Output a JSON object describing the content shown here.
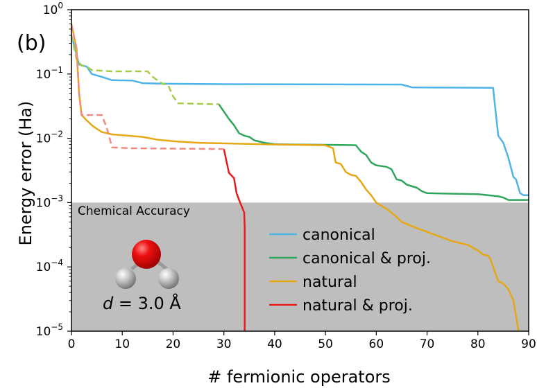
{
  "panel_label": "(b)",
  "chart_data": {
    "type": "line",
    "xlabel": "# fermionic operators",
    "ylabel": "Energy error (Ha)",
    "xlim": [
      0,
      90
    ],
    "ylim": [
      1e-05,
      1
    ],
    "yscale": "log",
    "x_ticks": [
      0,
      10,
      20,
      30,
      40,
      50,
      60,
      70,
      80,
      90
    ],
    "y_ticks": [
      {
        "value": 1,
        "base": "10",
        "exp": "0"
      },
      {
        "value": 0.1,
        "base": "10",
        "exp": "−1"
      },
      {
        "value": 0.01,
        "base": "10",
        "exp": "−2"
      },
      {
        "value": 0.001,
        "base": "10",
        "exp": "−3"
      },
      {
        "value": 0.0001,
        "base": "10",
        "exp": "−4"
      },
      {
        "value": 1e-05,
        "base": "10",
        "exp": "−5"
      }
    ],
    "shaded_region": {
      "label": "Chemical Accuracy",
      "y_from": 1e-05,
      "y_to": 0.001,
      "color": "#bebebe"
    },
    "molecule": {
      "name": "water",
      "label_var": "d",
      "label_rest": " = 3.0 Å",
      "oxygen_color": "#e00000",
      "hydrogen_color": "#b8b8b8"
    },
    "legend": {
      "position": "lower-center",
      "entries": [
        "canonical",
        "canonical & proj.",
        "natural",
        "natural & proj."
      ]
    },
    "series": [
      {
        "name": "canonical",
        "color": "#4fb3e6",
        "dash": "solid",
        "points": [
          [
            0,
            0.4
          ],
          [
            1,
            0.2
          ],
          [
            1.5,
            0.14
          ],
          [
            3,
            0.13
          ],
          [
            4,
            0.1
          ],
          [
            6,
            0.09
          ],
          [
            8,
            0.08
          ],
          [
            12,
            0.079
          ],
          [
            14,
            0.072
          ],
          [
            17,
            0.071
          ],
          [
            19,
            0.0705
          ],
          [
            30,
            0.0695
          ],
          [
            65,
            0.0685
          ],
          [
            67,
            0.062
          ],
          [
            72,
            0.0615
          ],
          [
            83,
            0.061
          ],
          [
            84,
            0.011
          ],
          [
            85,
            0.0085
          ],
          [
            86,
            0.005
          ],
          [
            87,
            0.0025
          ],
          [
            87.5,
            0.0023
          ],
          [
            88.3,
            0.0014
          ],
          [
            89,
            0.0013
          ],
          [
            90,
            0.0013
          ]
        ]
      },
      {
        "name": "canonical & proj.",
        "color": "#2ea55a",
        "dash": "solid",
        "points": [
          [
            29,
            0.034
          ],
          [
            30,
            0.026
          ],
          [
            31,
            0.02
          ],
          [
            32,
            0.016
          ],
          [
            33,
            0.012
          ],
          [
            34,
            0.011
          ],
          [
            35,
            0.0105
          ],
          [
            36,
            0.0093
          ],
          [
            38,
            0.0085
          ],
          [
            40,
            0.0081
          ],
          [
            44,
            0.008
          ],
          [
            52,
            0.0079
          ],
          [
            56,
            0.0078
          ],
          [
            57,
            0.0062
          ],
          [
            58,
            0.0055
          ],
          [
            59,
            0.0042
          ],
          [
            60,
            0.0038
          ],
          [
            61,
            0.0037
          ],
          [
            62,
            0.0036
          ],
          [
            63,
            0.0033
          ],
          [
            64,
            0.0023
          ],
          [
            65,
            0.0022
          ],
          [
            66,
            0.0019
          ],
          [
            68,
            0.0017
          ],
          [
            69,
            0.0015
          ],
          [
            70,
            0.0014
          ],
          [
            80,
            0.00135
          ],
          [
            82,
            0.0013
          ],
          [
            84,
            0.00125
          ],
          [
            85,
            0.0012
          ],
          [
            86,
            0.0011
          ],
          [
            88,
            0.0011
          ],
          [
            90,
            0.0011
          ]
        ]
      },
      {
        "name": "canonical-proj-dashed",
        "color": "#a8cc4a",
        "dash": "dashed",
        "points": [
          [
            0,
            0.4
          ],
          [
            1,
            0.17
          ],
          [
            2,
            0.135
          ],
          [
            3,
            0.13
          ],
          [
            4,
            0.115
          ],
          [
            8,
            0.11
          ],
          [
            15,
            0.11
          ],
          [
            16,
            0.09
          ],
          [
            18,
            0.07
          ],
          [
            19,
            0.068
          ],
          [
            20,
            0.045
          ],
          [
            21,
            0.035
          ],
          [
            28,
            0.034
          ],
          [
            29,
            0.034
          ]
        ]
      },
      {
        "name": "natural",
        "color": "#e6a717",
        "dash": "solid",
        "points": [
          [
            0,
            0.6
          ],
          [
            1,
            0.25
          ],
          [
            1.5,
            0.05
          ],
          [
            2,
            0.023
          ],
          [
            3,
            0.019
          ],
          [
            4,
            0.016
          ],
          [
            5,
            0.014
          ],
          [
            6,
            0.0125
          ],
          [
            8,
            0.0115
          ],
          [
            11,
            0.011
          ],
          [
            14,
            0.0105
          ],
          [
            17,
            0.0095
          ],
          [
            20,
            0.009
          ],
          [
            25,
            0.0085
          ],
          [
            40,
            0.008
          ],
          [
            50,
            0.0078
          ],
          [
            51.5,
            0.007
          ],
          [
            52,
            0.0042
          ],
          [
            53,
            0.004
          ],
          [
            54,
            0.003
          ],
          [
            55,
            0.0027
          ],
          [
            56,
            0.0026
          ],
          [
            57,
            0.0021
          ],
          [
            58,
            0.0016
          ],
          [
            59,
            0.0013
          ],
          [
            60,
            0.001
          ],
          [
            62,
            0.0008
          ],
          [
            64,
            0.0006
          ],
          [
            65,
            0.0005
          ],
          [
            68,
            0.0004
          ],
          [
            70,
            0.00035
          ],
          [
            75,
            0.00025
          ],
          [
            78,
            0.00022
          ],
          [
            80,
            0.00018
          ],
          [
            81,
            0.000155
          ],
          [
            82,
            0.00015
          ],
          [
            82.5,
            0.00013
          ],
          [
            83,
            0.0001
          ],
          [
            84,
            6e-05
          ],
          [
            85,
            5.5e-05
          ],
          [
            86,
            4.5e-05
          ],
          [
            87,
            3e-05
          ],
          [
            88,
            1e-05
          ]
        ]
      },
      {
        "name": "natural & proj.",
        "color": "#e81a1a",
        "dash": "solid",
        "points": [
          [
            30,
            0.0068
          ],
          [
            31,
            0.0029
          ],
          [
            32,
            0.0024
          ],
          [
            32.5,
            0.0014
          ],
          [
            33,
            0.0011
          ],
          [
            34,
            0.0007
          ],
          [
            34.1,
            0.0004
          ],
          [
            34.1,
            1e-05
          ]
        ]
      },
      {
        "name": "natural-proj-dashed",
        "color": "#ef8a80",
        "dash": "dashed",
        "points": [
          [
            0,
            0.6
          ],
          [
            1,
            0.25
          ],
          [
            1.5,
            0.05
          ],
          [
            2,
            0.023
          ],
          [
            6,
            0.023
          ],
          [
            7,
            0.014
          ],
          [
            8,
            0.0072
          ],
          [
            12,
            0.007
          ],
          [
            30,
            0.0068
          ]
        ]
      }
    ]
  }
}
